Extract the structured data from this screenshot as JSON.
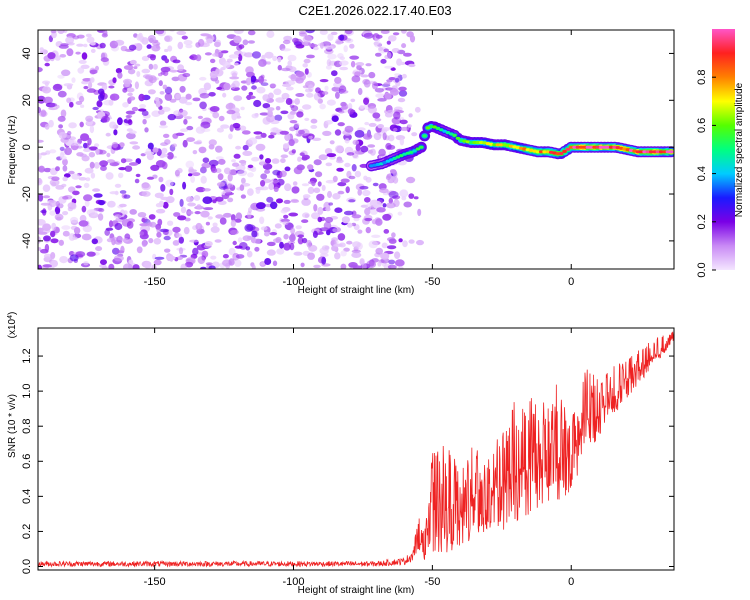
{
  "page_title": "C2E1.2026.022.17.40.E03",
  "chart_data": [
    {
      "type": "heatmap",
      "title": "C2E1.2026.022.17.40.E03",
      "xlabel": "Height of straight line (km)",
      "ylabel": "Frequency (Hz)",
      "xlim": [
        -192,
        37
      ],
      "ylim": [
        -52,
        50
      ],
      "xticks": [
        -150,
        -100,
        -50,
        0
      ],
      "yticks": [
        -40,
        -20,
        0,
        20,
        40
      ],
      "xtick_labels": [
        "-150",
        "-100",
        "-50",
        "0"
      ],
      "ytick_labels": [
        "-40",
        "-20",
        "0",
        "20",
        "40"
      ],
      "noise_region_x": [
        -192,
        -60
      ],
      "signal_track": {
        "x": [
          -72,
          -68,
          -64,
          -60,
          -57,
          -54,
          -52,
          -50,
          -48,
          -46,
          -44,
          -42,
          -40,
          -36,
          -32,
          -28,
          -24,
          -20,
          -16,
          -12,
          -8,
          -4,
          0,
          4,
          8,
          12,
          16,
          20,
          24,
          28,
          32,
          37
        ],
        "y": [
          -8,
          -7,
          -5,
          -3,
          -2,
          0,
          8,
          9,
          8,
          7,
          6,
          5,
          3,
          2,
          2,
          1,
          1,
          0,
          -1,
          -2,
          -2,
          -3,
          0,
          0,
          0,
          0,
          0,
          -1,
          -2,
          -2,
          -2,
          -2
        ],
        "amplitude": [
          0.3,
          0.35,
          0.4,
          0.45,
          0.45,
          0.45,
          0.5,
          0.55,
          0.45,
          0.4,
          0.4,
          0.45,
          0.5,
          0.55,
          0.6,
          0.6,
          0.65,
          0.7,
          0.75,
          0.75,
          0.8,
          0.8,
          0.85,
          0.9,
          0.9,
          0.9,
          0.9,
          0.85,
          0.9,
          0.9,
          0.9,
          0.9
        ]
      },
      "colorbar": {
        "label": "Normalized spectral amplitude",
        "range": [
          0.0,
          1.0
        ],
        "ticks": [
          "0.0",
          "0.2",
          "0.4",
          "0.6",
          "0.8"
        ],
        "tick_values": [
          0.0,
          0.2,
          0.4,
          0.6,
          0.8
        ],
        "colors": [
          "#f4e6ff",
          "#c98af5",
          "#7a00e6",
          "#1a1aff",
          "#00ccff",
          "#00ff80",
          "#55ff00",
          "#ffff00",
          "#ff8000",
          "#ff2020",
          "#ff55c8"
        ]
      }
    },
    {
      "type": "line",
      "xlabel": "Height of straight line (km)",
      "ylabel": "SNR (10 * v/v)",
      "yscale_label": "(x10",
      "yscale_exp": "4",
      "yscale_close": ")",
      "xlim": [
        -192,
        37
      ],
      "ylim": [
        -0.02,
        1.36
      ],
      "xticks": [
        -150,
        -100,
        -50,
        0
      ],
      "xtick_labels": [
        "-150",
        "-100",
        "-50",
        "0"
      ],
      "yticks": [
        0.0,
        0.2,
        0.4,
        0.6,
        0.8,
        1.0,
        1.2
      ],
      "ytick_labels": [
        "0.0",
        "0.2",
        "0.4",
        "0.6",
        "0.8",
        "1.0",
        "1.2"
      ],
      "color": "#ee2222",
      "envelope": {
        "x": [
          -192,
          -70,
          -60,
          -57,
          -55,
          -54,
          -52,
          -50,
          -45,
          -40,
          -35,
          -30,
          -25,
          -20,
          -15,
          -10,
          -5,
          0,
          5,
          10,
          15,
          20,
          25,
          30,
          37
        ],
        "low": [
          0.0,
          0.0,
          0.01,
          0.03,
          0.1,
          0.05,
          0.03,
          0.05,
          0.08,
          0.1,
          0.15,
          0.18,
          0.2,
          0.25,
          0.3,
          0.35,
          0.3,
          0.45,
          0.6,
          0.75,
          0.85,
          0.95,
          1.05,
          1.15,
          1.28
        ],
        "high": [
          0.03,
          0.03,
          0.05,
          0.1,
          0.3,
          0.22,
          0.45,
          0.65,
          0.7,
          0.6,
          0.75,
          0.65,
          0.85,
          0.95,
          1.0,
          0.95,
          1.05,
          0.85,
          1.2,
          1.05,
          1.15,
          1.2,
          1.25,
          1.3,
          1.35
        ]
      }
    }
  ]
}
